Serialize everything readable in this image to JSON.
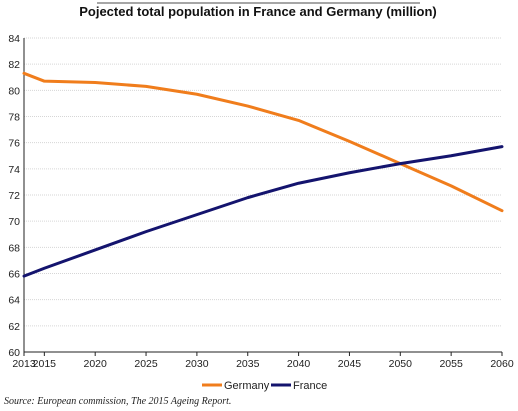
{
  "chart_data": {
    "type": "line",
    "title": "Pojected total population in France and Germany (million)",
    "source": "Source: European commission, The 2015 Ageing Report.",
    "xlabel": "",
    "ylabel": "",
    "x": [
      2013,
      2015,
      2020,
      2025,
      2030,
      2035,
      2040,
      2045,
      2050,
      2055,
      2060
    ],
    "x_tick_labels": [
      "2013",
      "2015",
      "2020",
      "2025",
      "2030",
      "2035",
      "2040",
      "2045",
      "2050",
      "2055",
      "2060"
    ],
    "y_tick_labels": [
      "60",
      "62",
      "64",
      "66",
      "68",
      "70",
      "72",
      "74",
      "76",
      "78",
      "80",
      "82",
      "84"
    ],
    "ylim": [
      60,
      84
    ],
    "grid": true,
    "legend_position": "bottom-center",
    "series": [
      {
        "name": "Germany",
        "color": "#f07d1c",
        "values": [
          81.3,
          80.7,
          80.6,
          80.3,
          79.7,
          78.8,
          77.7,
          76.1,
          74.4,
          72.7,
          70.8
        ]
      },
      {
        "name": "France",
        "color": "#14146e",
        "values": [
          65.8,
          66.4,
          67.8,
          69.2,
          70.5,
          71.8,
          72.9,
          73.7,
          74.4,
          75.0,
          75.7
        ]
      }
    ]
  }
}
